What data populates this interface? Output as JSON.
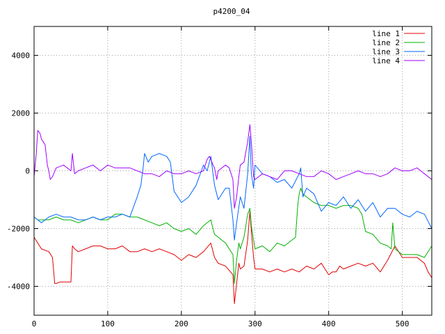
{
  "chart_data": {
    "type": "line",
    "title": "p4200_04",
    "xlabel": "",
    "ylabel": "",
    "xlim": [
      0,
      540
    ],
    "ylim": [
      -5000,
      5000
    ],
    "xticks": [
      0,
      100,
      200,
      300,
      400,
      500
    ],
    "yticks": [
      -4000,
      -2000,
      0,
      2000,
      4000
    ],
    "grid": true,
    "legend_position": "top-right",
    "series": [
      {
        "name": "line 1",
        "color": "#e00000",
        "x": [
          0,
          5,
          10,
          20,
          25,
          28,
          30,
          35,
          40,
          45,
          50,
          52,
          55,
          60,
          70,
          80,
          90,
          100,
          110,
          120,
          130,
          140,
          150,
          160,
          170,
          180,
          190,
          200,
          210,
          220,
          230,
          240,
          245,
          250,
          260,
          270,
          272,
          275,
          278,
          280,
          285,
          290,
          293,
          295,
          298,
          300,
          310,
          320,
          330,
          340,
          350,
          360,
          370,
          380,
          390,
          400,
          405,
          410,
          415,
          420,
          430,
          440,
          450,
          460,
          470,
          480,
          490,
          500,
          510,
          520,
          530,
          535,
          540
        ],
        "y": [
          -2300,
          -2500,
          -2700,
          -2800,
          -3000,
          -3900,
          -3900,
          -3850,
          -3850,
          -3850,
          -3850,
          -2600,
          -2700,
          -2800,
          -2700,
          -2600,
          -2600,
          -2700,
          -2700,
          -2600,
          -2800,
          -2800,
          -2700,
          -2800,
          -2700,
          -2800,
          -2900,
          -3100,
          -2900,
          -3000,
          -2800,
          -2500,
          -3000,
          -3200,
          -3300,
          -3600,
          -4600,
          -3900,
          -3200,
          -3400,
          -3300,
          -2400,
          -1400,
          -2100,
          -3000,
          -3400,
          -3400,
          -3500,
          -3400,
          -3500,
          -3400,
          -3500,
          -3300,
          -3400,
          -3200,
          -3600,
          -3500,
          -3500,
          -3300,
          -3400,
          -3300,
          -3200,
          -3300,
          -3200,
          -3500,
          -3100,
          -2600,
          -3000,
          -3000,
          -3000,
          -3200,
          -3500,
          -3700
        ]
      },
      {
        "name": "line 2",
        "color": "#00b000",
        "x": [
          0,
          5,
          10,
          20,
          30,
          40,
          50,
          60,
          70,
          80,
          90,
          100,
          110,
          120,
          130,
          140,
          150,
          160,
          170,
          180,
          190,
          200,
          210,
          220,
          230,
          240,
          245,
          250,
          260,
          270,
          272,
          275,
          278,
          280,
          285,
          290,
          293,
          295,
          298,
          300,
          310,
          320,
          330,
          340,
          350,
          355,
          358,
          360,
          362,
          365,
          370,
          380,
          390,
          400,
          410,
          420,
          430,
          440,
          445,
          450,
          460,
          470,
          480,
          485,
          487,
          490,
          500,
          510,
          520,
          530,
          540
        ],
        "y": [
          -1600,
          -1700,
          -1700,
          -1700,
          -1600,
          -1700,
          -1700,
          -1800,
          -1700,
          -1600,
          -1700,
          -1700,
          -1500,
          -1500,
          -1600,
          -1600,
          -1700,
          -1800,
          -1900,
          -1800,
          -2000,
          -2100,
          -2000,
          -2200,
          -1900,
          -1700,
          -2200,
          -2300,
          -2500,
          -2900,
          -3900,
          -3100,
          -2500,
          -2700,
          -2300,
          -1500,
          -1300,
          -1900,
          -2400,
          -2700,
          -2600,
          -2800,
          -2500,
          -2600,
          -2400,
          -2300,
          -1200,
          -800,
          -600,
          -800,
          -900,
          -1100,
          -1200,
          -1200,
          -1300,
          -1200,
          -1200,
          -1300,
          -1500,
          -2100,
          -2200,
          -2500,
          -2600,
          -2700,
          -1800,
          -2700,
          -2900,
          -2900,
          -2900,
          -3000,
          -2600
        ]
      },
      {
        "name": "line 3",
        "color": "#0066ff",
        "x": [
          0,
          5,
          10,
          20,
          30,
          40,
          50,
          60,
          70,
          80,
          90,
          100,
          110,
          120,
          130,
          140,
          145,
          148,
          150,
          155,
          160,
          170,
          180,
          185,
          190,
          195,
          200,
          210,
          220,
          230,
          235,
          240,
          245,
          250,
          260,
          265,
          270,
          272,
          275,
          280,
          285,
          290,
          293,
          295,
          298,
          300,
          310,
          320,
          330,
          340,
          350,
          360,
          362,
          365,
          370,
          380,
          390,
          400,
          410,
          420,
          430,
          440,
          450,
          460,
          470,
          480,
          490,
          500,
          510,
          520,
          530,
          540
        ],
        "y": [
          -1600,
          -1700,
          -1800,
          -1600,
          -1500,
          -1600,
          -1600,
          -1700,
          -1700,
          -1600,
          -1700,
          -1600,
          -1600,
          -1500,
          -1600,
          -900,
          -500,
          100,
          600,
          300,
          500,
          600,
          500,
          300,
          -700,
          -900,
          -1100,
          -900,
          -500,
          200,
          0,
          500,
          -500,
          -1000,
          -600,
          -600,
          -1700,
          -2400,
          -1800,
          -900,
          -1300,
          -100,
          1200,
          -100,
          -600,
          200,
          -100,
          -200,
          -400,
          -300,
          -600,
          -100,
          100,
          -900,
          -600,
          -800,
          -1400,
          -1100,
          -1200,
          -900,
          -1300,
          -1000,
          -1400,
          -1100,
          -1600,
          -1300,
          -1300,
          -1500,
          -1600,
          -1400,
          -1500,
          -2000
        ]
      },
      {
        "name": "line 4",
        "color": "#a000ff",
        "x": [
          0,
          3,
          5,
          8,
          10,
          15,
          18,
          20,
          22,
          25,
          30,
          40,
          50,
          52,
          55,
          60,
          70,
          80,
          90,
          100,
          110,
          120,
          130,
          140,
          150,
          160,
          170,
          180,
          190,
          200,
          210,
          220,
          230,
          235,
          238,
          240,
          243,
          245,
          248,
          250,
          260,
          265,
          270,
          272,
          275,
          278,
          280,
          285,
          290,
          293,
          295,
          298,
          300,
          310,
          320,
          330,
          340,
          350,
          360,
          370,
          380,
          390,
          400,
          410,
          420,
          430,
          440,
          450,
          460,
          470,
          480,
          490,
          500,
          510,
          520,
          530,
          540
        ],
        "y": [
          -200,
          600,
          1400,
          1300,
          1100,
          900,
          200,
          0,
          -300,
          -200,
          100,
          200,
          0,
          600,
          -100,
          0,
          100,
          200,
          0,
          200,
          100,
          100,
          100,
          0,
          -100,
          -100,
          -200,
          0,
          -100,
          -100,
          0,
          -100,
          0,
          400,
          500,
          400,
          200,
          100,
          -300,
          0,
          200,
          100,
          -300,
          -1300,
          -900,
          -200,
          200,
          300,
          1000,
          1600,
          1000,
          -200,
          -300,
          -100,
          -200,
          -300,
          0,
          0,
          -100,
          -200,
          -200,
          0,
          -100,
          -300,
          -200,
          -100,
          0,
          -100,
          -100,
          -200,
          -100,
          100,
          0,
          0,
          100,
          -100,
          -300
        ]
      }
    ]
  }
}
